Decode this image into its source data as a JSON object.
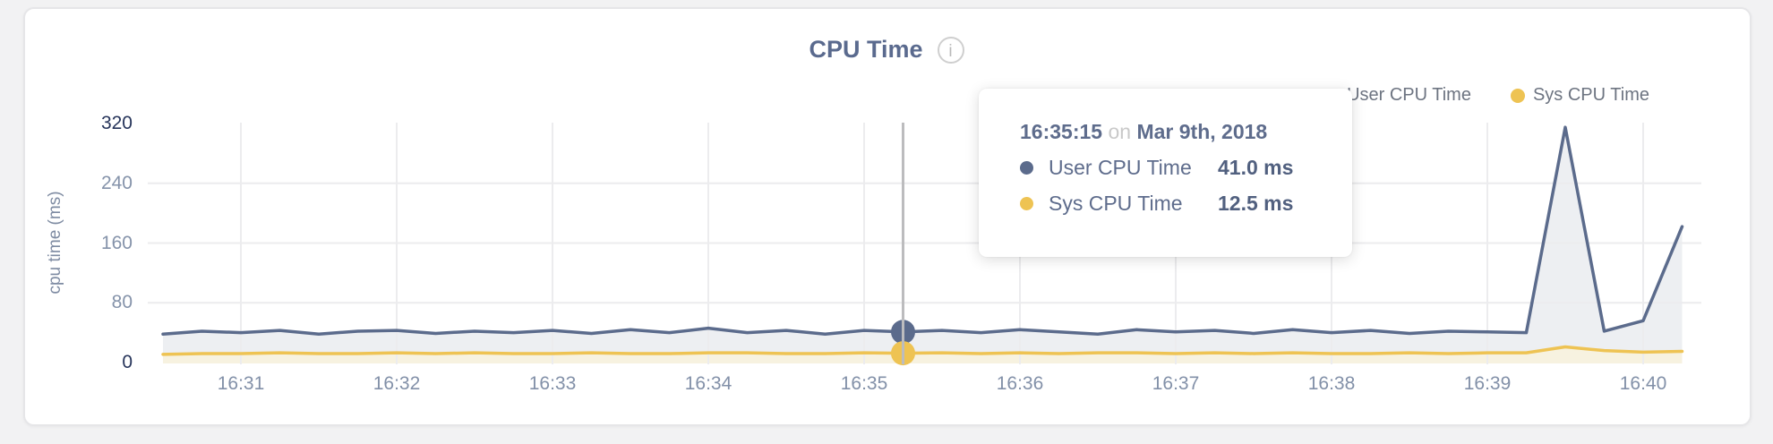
{
  "header": {
    "title": "CPU Time",
    "info_icon": "i"
  },
  "colors": {
    "user_series": "#5b6b8c",
    "sys_series": "#eec353",
    "user_fill": "rgba(91,107,140,0.11)",
    "sys_fill": "rgba(210,175,70,0.17)",
    "grid": "#ececee",
    "hover_line": "#bcbcbe"
  },
  "legend": {
    "items": [
      {
        "label": "User CPU Time",
        "color": "#5b6b8c"
      },
      {
        "label": "Sys CPU Time",
        "color": "#eec353"
      }
    ]
  },
  "tooltip": {
    "time": "16:35:15",
    "separator": "on",
    "date": "Mar 9th, 2018",
    "rows": [
      {
        "label": "User CPU Time",
        "value": "41.0 ms",
        "color": "#5b6b8c"
      },
      {
        "label": "Sys CPU Time",
        "value": "12.5 ms",
        "color": "#eec353"
      }
    ]
  },
  "chart_data": {
    "type": "area",
    "title": "CPU Time",
    "xlabel": "",
    "ylabel": "cpu time (ms)",
    "ylim": [
      0,
      320
    ],
    "y_ticks": [
      0,
      80,
      160,
      240,
      320
    ],
    "x_ticks": [
      "16:31",
      "16:32",
      "16:33",
      "16:34",
      "16:35",
      "16:36",
      "16:37",
      "16:38",
      "16:39",
      "16:40"
    ],
    "grid": true,
    "legend_position": "top-right",
    "x": [
      "16:30:30",
      "16:30:45",
      "16:31:00",
      "16:31:15",
      "16:31:30",
      "16:31:45",
      "16:32:00",
      "16:32:15",
      "16:32:30",
      "16:32:45",
      "16:33:00",
      "16:33:15",
      "16:33:30",
      "16:33:45",
      "16:34:00",
      "16:34:15",
      "16:34:30",
      "16:34:45",
      "16:35:00",
      "16:35:15",
      "16:35:30",
      "16:35:45",
      "16:36:00",
      "16:36:15",
      "16:36:30",
      "16:36:45",
      "16:37:00",
      "16:37:15",
      "16:37:30",
      "16:37:45",
      "16:38:00",
      "16:38:15",
      "16:38:30",
      "16:38:45",
      "16:39:00",
      "16:39:15",
      "16:39:30",
      "16:39:45",
      "16:40:00",
      "16:40:15"
    ],
    "series": [
      {
        "name": "User CPU Time",
        "color": "#5b6b8c",
        "values": [
          38,
          42,
          40,
          43,
          38,
          42,
          43,
          39,
          42,
          40,
          43,
          39,
          44,
          40,
          46,
          40,
          43,
          38,
          43,
          41,
          43,
          40,
          44,
          41,
          38,
          44,
          41,
          43,
          39,
          44,
          40,
          43,
          39,
          42,
          41,
          40,
          315,
          42,
          56,
          182
        ]
      },
      {
        "name": "Sys CPU Time",
        "color": "#eec353",
        "values": [
          11,
          12,
          12,
          13,
          12,
          12,
          13,
          12,
          13,
          12,
          12,
          13,
          12,
          12,
          13,
          13,
          12,
          12,
          13,
          12.5,
          13,
          12,
          13,
          12,
          13,
          13,
          12,
          13,
          12,
          13,
          12,
          12,
          13,
          12,
          13,
          13,
          21,
          16,
          14,
          15
        ]
      }
    ],
    "hover": {
      "time": "16:35:15",
      "user_value": 41.0,
      "sys_value": 12.5
    }
  }
}
